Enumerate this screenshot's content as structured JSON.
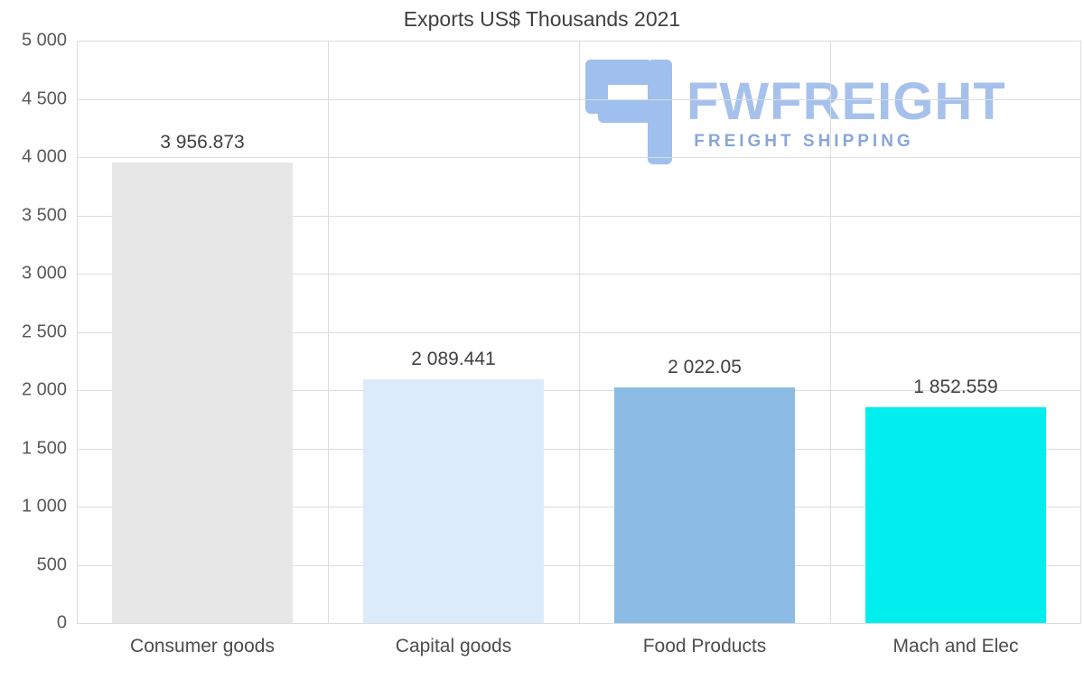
{
  "logo": {
    "name": "FWFREIGHT",
    "subtitle": "FREIGHT SHIPPING",
    "icon": "stylized-f-monogram",
    "name_color": "#a6c1ec",
    "subtitle_color": "#8aa6da"
  },
  "chart_data": {
    "type": "bar",
    "title": "Exports US$ Thousands 2021",
    "categories": [
      "Consumer goods",
      "Capital goods",
      "Food Products",
      "Mach and Elec"
    ],
    "values": [
      3956.873,
      2089.441,
      2022.05,
      1852.559
    ],
    "value_labels": [
      "3 956.873",
      "2 089.441",
      "2 022.05",
      "1 852.559"
    ],
    "bar_colors": [
      "#e7e7e7",
      "#dcebfa",
      "#8cbce3",
      "#00eeee"
    ],
    "xlabel": "",
    "ylabel": "",
    "ylim": [
      0,
      5000
    ],
    "ytick_step": 500,
    "ytick_labels": [
      "5 000",
      "4 500",
      "4 000",
      "3 500",
      "3 000",
      "2 500",
      "2 000",
      "1 500",
      "1 000",
      "500",
      "0"
    ],
    "grid": true,
    "legend": false,
    "gridline_color": "#dcdcdc",
    "text_color": "#404040",
    "axis_label_color": "#595959"
  }
}
